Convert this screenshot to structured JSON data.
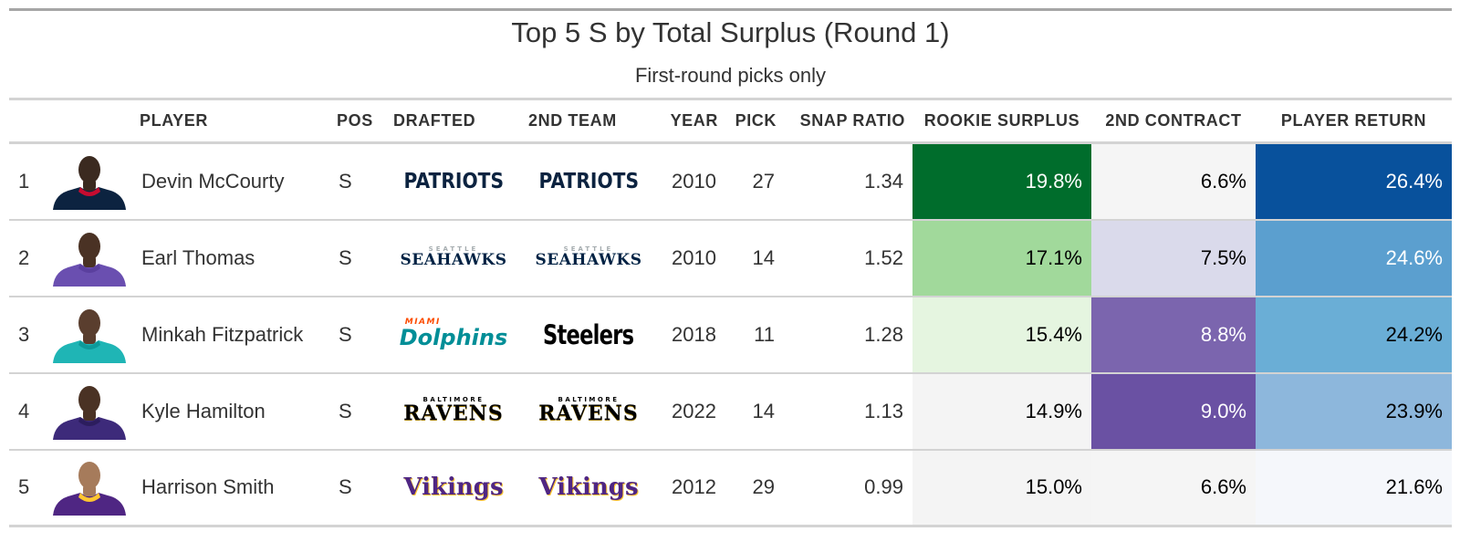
{
  "title": "Top 5 S by Total Surplus (Round 1)",
  "subtitle": "First-round picks only",
  "columns": {
    "player": "PLAYER",
    "pos": "POS",
    "drafted": "DRAFTED",
    "second_team": "2ND TEAM",
    "year": "YEAR",
    "pick": "PICK",
    "snap_ratio": "SNAP RATIO",
    "rookie_surplus": "ROOKIE SURPLUS",
    "second_contract": "2ND CONTRACT",
    "player_return": "PLAYER RETURN"
  },
  "rows": [
    {
      "rank": "1",
      "player": "Devin McCourty",
      "pos": "S",
      "drafted": {
        "logo": "patriots-logo",
        "big": "PATRIOTS",
        "small": ""
      },
      "second_team": {
        "logo": "patriots-logo",
        "big": "PATRIOTS",
        "small": ""
      },
      "year": "2010",
      "pick": "27",
      "snap_ratio": "1.34",
      "rookie_surplus": "19.8%",
      "second_contract": "6.6%",
      "player_return": "26.4%",
      "colors": {
        "rookie_bg": "#006d2c",
        "rookie_fg": "#ffffff",
        "second_bg": "#f5f5f5",
        "second_fg": "#000000",
        "return_bg": "#08519c",
        "return_fg": "#ffffff"
      },
      "avatar": {
        "jersey": "#0c2340",
        "trim": "#c60c30",
        "skin": "#3b2a20"
      }
    },
    {
      "rank": "2",
      "player": "Earl Thomas",
      "pos": "S",
      "drafted": {
        "logo": "seahawks-logo",
        "big": "SEAHAWKS",
        "small": "SEATTLE"
      },
      "second_team": {
        "logo": "seahawks-logo",
        "big": "SEAHAWKS",
        "small": "SEATTLE"
      },
      "year": "2010",
      "pick": "14",
      "snap_ratio": "1.52",
      "rookie_surplus": "17.1%",
      "second_contract": "7.5%",
      "player_return": "24.6%",
      "colors": {
        "rookie_bg": "#a1d99b",
        "rookie_fg": "#000000",
        "second_bg": "#dadaeb",
        "second_fg": "#000000",
        "return_bg": "#5b9fcf",
        "return_fg": "#ffffff"
      },
      "avatar": {
        "jersey": "#6a4fb0",
        "trim": "#5a3f9e",
        "skin": "#4a3224"
      }
    },
    {
      "rank": "3",
      "player": "Minkah Fitzpatrick",
      "pos": "S",
      "drafted": {
        "logo": "dolphins-logo",
        "big": "Dolphins",
        "small": "MIAMI"
      },
      "second_team": {
        "logo": "steelers-logo",
        "big": "Steelers",
        "small": ""
      },
      "year": "2018",
      "pick": "11",
      "snap_ratio": "1.28",
      "rookie_surplus": "15.4%",
      "second_contract": "8.8%",
      "player_return": "24.2%",
      "colors": {
        "rookie_bg": "#e5f5e0",
        "rookie_fg": "#000000",
        "second_bg": "#7b65ae",
        "second_fg": "#ffffff",
        "return_bg": "#6aaed6",
        "return_fg": "#000000"
      },
      "avatar": {
        "jersey": "#1fb5b5",
        "trim": "#0d9a9a",
        "skin": "#5a3e2e"
      }
    },
    {
      "rank": "4",
      "player": "Kyle Hamilton",
      "pos": "S",
      "drafted": {
        "logo": "ravens-logo",
        "big": "RAVENS",
        "small": "BALTIMORE"
      },
      "second_team": {
        "logo": "ravens-logo",
        "big": "RAVENS",
        "small": "BALTIMORE"
      },
      "year": "2022",
      "pick": "14",
      "snap_ratio": "1.13",
      "rookie_surplus": "14.9%",
      "second_contract": "9.0%",
      "player_return": "23.9%",
      "colors": {
        "rookie_bg": "#f4f4f4",
        "rookie_fg": "#000000",
        "second_bg": "#6a51a3",
        "second_fg": "#ffffff",
        "return_bg": "#8db7dc",
        "return_fg": "#000000"
      },
      "avatar": {
        "jersey": "#3d2a7a",
        "trim": "#2c1d5e",
        "skin": "#4a3224"
      }
    },
    {
      "rank": "5",
      "player": "Harrison Smith",
      "pos": "S",
      "drafted": {
        "logo": "vikings-logo",
        "big": "Vikings",
        "small": ""
      },
      "second_team": {
        "logo": "vikings-logo",
        "big": "Vikings",
        "small": ""
      },
      "year": "2012",
      "pick": "29",
      "snap_ratio": "0.99",
      "rookie_surplus": "15.0%",
      "second_contract": "6.6%",
      "player_return": "21.6%",
      "colors": {
        "rookie_bg": "#f4f4f4",
        "rookie_fg": "#000000",
        "second_bg": "#f5f5f5",
        "second_fg": "#000000",
        "return_bg": "#f5f7fb",
        "return_fg": "#000000"
      },
      "avatar": {
        "jersey": "#4f2683",
        "trim": "#ffc62f",
        "skin": "#a67b5b"
      }
    }
  ]
}
